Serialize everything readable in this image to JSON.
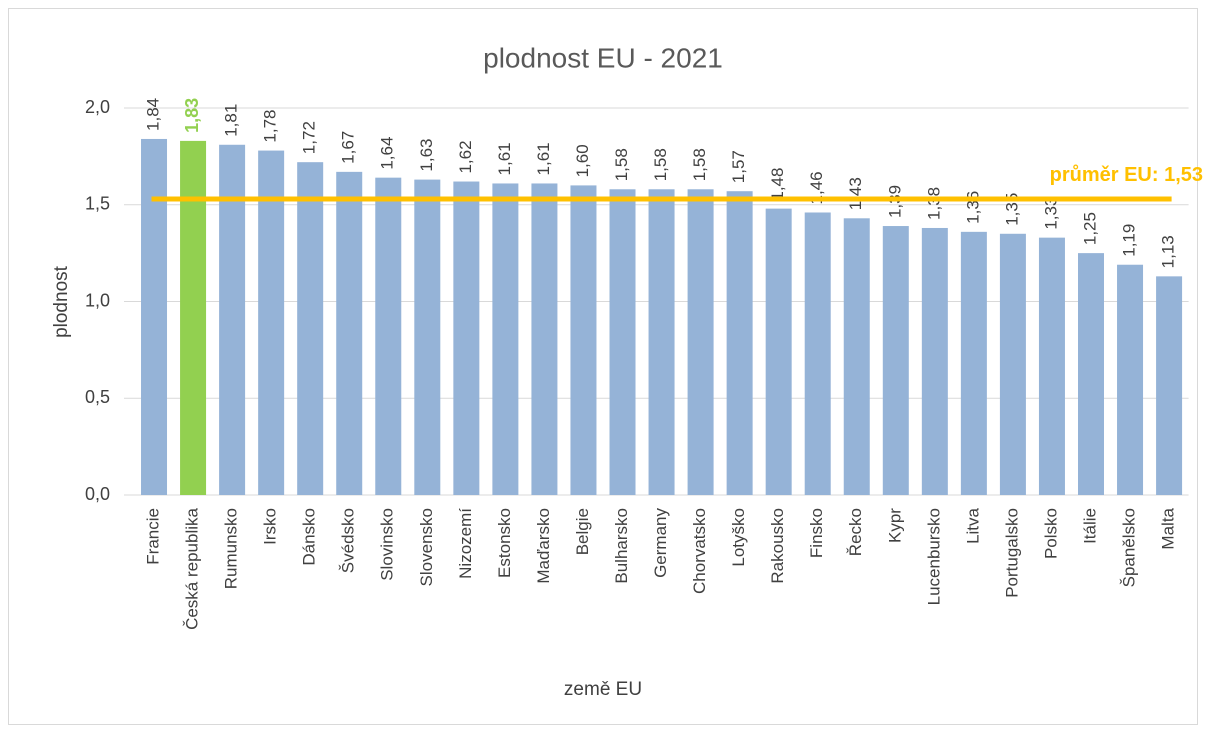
{
  "chart_data": {
    "type": "bar",
    "title": "plodnost EU - 2021",
    "x_label": "země EU",
    "y_label": "plodnost",
    "categories": [
      "Francie",
      "Česká republika",
      "Rumunsko",
      "Irsko",
      "Dánsko",
      "Švédsko",
      "Slovinsko",
      "Slovensko",
      "Nizozemí",
      "Estonsko",
      "Maďarsko",
      "Belgie",
      "Bulharsko",
      "Germany",
      "Chorvatsko",
      "Lotyško",
      "Rakousko",
      "Finsko",
      "Řecko",
      "Kypr",
      "Lucenbursko",
      "Litva",
      "Portugalsko",
      "Polsko",
      "Itálie",
      "Španělsko",
      "Malta"
    ],
    "values": [
      1.84,
      1.83,
      1.81,
      1.78,
      1.72,
      1.67,
      1.64,
      1.63,
      1.62,
      1.61,
      1.61,
      1.6,
      1.58,
      1.58,
      1.58,
      1.57,
      1.48,
      1.46,
      1.43,
      1.39,
      1.38,
      1.36,
      1.35,
      1.33,
      1.25,
      1.19,
      1.13
    ],
    "value_labels": [
      "1,84",
      "1,83",
      "1,81",
      "1,78",
      "1,72",
      "1,67",
      "1,64",
      "1,63",
      "1,62",
      "1,61",
      "1,61",
      "1,60",
      "1,58",
      "1,58",
      "1,58",
      "1,57",
      "1,48",
      "1,46",
      "1,43",
      "1,39",
      "1,38",
      "1,36",
      "1,35",
      "1,33",
      "1,25",
      "1,19",
      "1,13"
    ],
    "colors": [
      "#95b3d7",
      "#92d050",
      "#95b3d7",
      "#95b3d7",
      "#95b3d7",
      "#95b3d7",
      "#95b3d7",
      "#95b3d7",
      "#95b3d7",
      "#95b3d7",
      "#95b3d7",
      "#95b3d7",
      "#95b3d7",
      "#95b3d7",
      "#95b3d7",
      "#95b3d7",
      "#95b3d7",
      "#95b3d7",
      "#95b3d7",
      "#95b3d7",
      "#95b3d7",
      "#95b3d7",
      "#95b3d7",
      "#95b3d7",
      "#95b3d7",
      "#95b3d7",
      "#95b3d7"
    ],
    "highlight_color": "#92d050",
    "average": {
      "value": 1.53,
      "label": "průměr EU: 1,53",
      "color": "#ffc000"
    },
    "ylim": [
      0,
      2
    ],
    "yticks": [
      {
        "value": 0,
        "label": "0,0"
      },
      {
        "value": 0.5,
        "label": "0,5"
      },
      {
        "value": 1,
        "label": "1,0"
      },
      {
        "value": 1.5,
        "label": "1,5"
      },
      {
        "value": 2,
        "label": "2,0"
      }
    ],
    "grid": true
  }
}
